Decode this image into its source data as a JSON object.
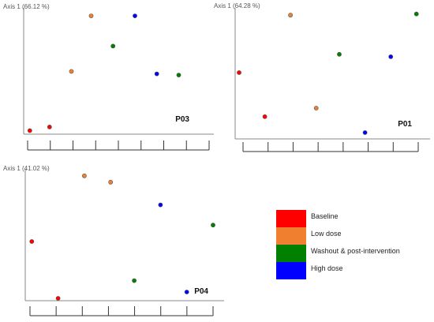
{
  "colors": {
    "baseline": "#ff0000",
    "low_dose": "#f07f30",
    "washout": "#008000",
    "high_dose": "#0000ff"
  },
  "legend": {
    "items": [
      {
        "label": "Baseline",
        "color": "#ff0000"
      },
      {
        "label": "Low dose",
        "color": "#f07f30"
      },
      {
        "label": "Washout & post-intervention",
        "color": "#008000"
      },
      {
        "label": "High dose",
        "color": "#0000ff"
      }
    ]
  },
  "chart_data": [
    {
      "type": "scatter",
      "panel_label": "P03",
      "ylabel": "Axis 1 (66.12 %)",
      "grid": false,
      "x_ticks": 8,
      "xlim": [
        0,
        8
      ],
      "ylim": [
        0,
        1
      ],
      "points": [
        {
          "x": 0.1,
          "y": 0.01,
          "group": "baseline"
        },
        {
          "x": 1.0,
          "y": 0.04,
          "group": "baseline"
        },
        {
          "x": 2.0,
          "y": 0.5,
          "group": "low_dose"
        },
        {
          "x": 2.9,
          "y": 0.96,
          "group": "low_dose"
        },
        {
          "x": 3.9,
          "y": 0.71,
          "group": "washout"
        },
        {
          "x": 4.9,
          "y": 0.96,
          "group": "high_dose"
        },
        {
          "x": 5.9,
          "y": 0.48,
          "group": "high_dose"
        },
        {
          "x": 6.9,
          "y": 0.47,
          "group": "washout"
        }
      ]
    },
    {
      "type": "scatter",
      "panel_label": "P01",
      "ylabel": "Axis 1 (64.28 %)",
      "grid": false,
      "x_ticks": 7,
      "xlim": [
        0,
        7
      ],
      "ylim": [
        0,
        1
      ],
      "points": [
        {
          "x": 0.0,
          "y": 0.49,
          "group": "baseline"
        },
        {
          "x": 1.0,
          "y": 0.13,
          "group": "baseline"
        },
        {
          "x": 2.0,
          "y": 0.96,
          "group": "low_dose"
        },
        {
          "x": 3.0,
          "y": 0.2,
          "group": "low_dose"
        },
        {
          "x": 3.9,
          "y": 0.64,
          "group": "washout"
        },
        {
          "x": 4.9,
          "y": 0.0,
          "group": "high_dose"
        },
        {
          "x": 5.9,
          "y": 0.62,
          "group": "high_dose"
        },
        {
          "x": 6.9,
          "y": 0.97,
          "group": "washout"
        }
      ]
    },
    {
      "type": "scatter",
      "panel_label": "P04",
      "ylabel": "Axis 1 (41.02 %)",
      "grid": false,
      "x_ticks": 7,
      "xlim": [
        0,
        7
      ],
      "ylim": [
        0,
        1
      ],
      "points": [
        {
          "x": 0.1,
          "y": 0.45,
          "group": "baseline"
        },
        {
          "x": 1.1,
          "y": 0.0,
          "group": "baseline"
        },
        {
          "x": 2.1,
          "y": 0.97,
          "group": "low_dose"
        },
        {
          "x": 3.1,
          "y": 0.92,
          "group": "low_dose"
        },
        {
          "x": 4.0,
          "y": 0.14,
          "group": "washout"
        },
        {
          "x": 5.0,
          "y": 0.74,
          "group": "high_dose"
        },
        {
          "x": 6.0,
          "y": 0.05,
          "group": "high_dose"
        },
        {
          "x": 7.0,
          "y": 0.58,
          "group": "washout"
        }
      ]
    }
  ]
}
